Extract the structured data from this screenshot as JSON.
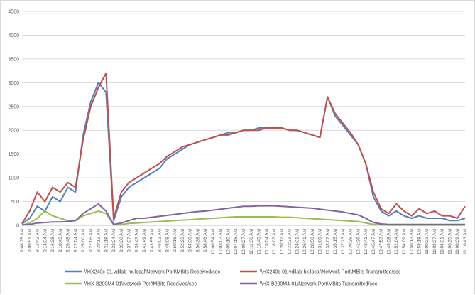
{
  "chart_data": {
    "type": "line",
    "title": "",
    "xlabel": "",
    "ylabel": "",
    "ylim": [
      0,
      4500
    ],
    "yticks": [
      0,
      500,
      1000,
      1500,
      2000,
      2500,
      3000,
      3500,
      4000,
      4500
    ],
    "grid": "horizontal",
    "legend_position": "bottom",
    "x": [
      "9:08:25 AM",
      "9:09:51 AM",
      "9:12:42 AM",
      "9:14:34 AM",
      "9:16:38 AM",
      "9:18:43 AM",
      "9:20:48 AM",
      "9:22:54 AM",
      "9:25:00 AM",
      "9:27:06 AM",
      "9:29:12 AM",
      "9:31:18 AM",
      "9:33:24 AM",
      "9:35:30 AM",
      "9:37:37 AM",
      "9:39:43 AM",
      "9:41:49 AM",
      "9:43:55 AM",
      "9:46:02 AM",
      "9:48:08 AM",
      "9:50:16 AM",
      "9:52:23 AM",
      "9:54:30 AM",
      "9:56:38 AM",
      "9:58:46 AM",
      "10:00:54 AM",
      "10:03:02 AM",
      "10:05:10 AM",
      "10:07:18 AM",
      "10:09:27 AM",
      "10:11:36 AM",
      "10:13:45 AM",
      "10:15:54 AM",
      "10:18:03 AM",
      "10:20:12 AM",
      "10:22:21 AM",
      "10:24:31 AM",
      "10:26:41 AM",
      "10:28:50 AM",
      "10:31:00 AM",
      "10:33:07 AM",
      "10:35:15 AM",
      "10:37:23 AM",
      "10:39:29 AM",
      "10:41:36 AM",
      "10:43:41 AM",
      "10:45:47 AM",
      "10:47:53 AM",
      "10:49:58 AM",
      "10:52:04 AM",
      "10:54:09 AM",
      "10:56:13 AM",
      "10:58:18 AM",
      "11:00:23 AM",
      "11:02:27 AM",
      "11:04:31 AM",
      "11:06:35 AM",
      "11:08:39 AM",
      "11:10:43 AM"
    ],
    "series": [
      {
        "name": "\\\\HX240c-01.vdilab-hx.local\\Network Port\\MBits Received/sec",
        "color": "#4f81bd",
        "values": [
          30,
          150,
          400,
          300,
          600,
          500,
          800,
          700,
          1900,
          2600,
          3000,
          2800,
          100,
          600,
          800,
          900,
          1000,
          1100,
          1200,
          1400,
          1500,
          1600,
          1700,
          1750,
          1800,
          1850,
          1900,
          1950,
          1950,
          2000,
          2000,
          2050,
          2050,
          2050,
          2050,
          2000,
          2000,
          1950,
          1900,
          1850,
          2700,
          2300,
          2100,
          1900,
          1700,
          1300,
          600,
          300,
          200,
          300,
          200,
          150,
          200,
          150,
          150,
          150,
          100,
          100,
          150
        ]
      },
      {
        "name": "\\\\HX240c-01.vdilab-hx.local\\Network Port\\MBits Transmitted/sec",
        "color": "#c0504d",
        "values": [
          40,
          300,
          700,
          500,
          800,
          700,
          900,
          800,
          1800,
          2500,
          2900,
          3200,
          150,
          700,
          900,
          1000,
          1100,
          1200,
          1300,
          1450,
          1550,
          1650,
          1700,
          1750,
          1800,
          1850,
          1900,
          1900,
          1950,
          2000,
          2000,
          2000,
          2050,
          2050,
          2050,
          2000,
          2000,
          1950,
          1900,
          1850,
          2700,
          2350,
          2150,
          1950,
          1700,
          1300,
          700,
          350,
          250,
          450,
          300,
          200,
          350,
          250,
          300,
          200,
          200,
          150,
          400
        ]
      },
      {
        "name": "\\\\HX-B200M4-01\\Network Port\\MBits Received/sec",
        "color": "#9bbb59",
        "values": [
          5,
          50,
          150,
          300,
          200,
          150,
          100,
          100,
          200,
          250,
          300,
          250,
          10,
          20,
          40,
          50,
          60,
          70,
          80,
          90,
          100,
          110,
          120,
          130,
          140,
          150,
          160,
          170,
          180,
          180,
          180,
          180,
          180,
          180,
          170,
          170,
          160,
          150,
          140,
          130,
          120,
          110,
          100,
          90,
          80,
          50,
          20,
          10,
          5,
          5,
          5,
          5,
          5,
          5,
          5,
          5,
          5,
          5,
          5
        ]
      },
      {
        "name": "\\\\HX-B200M4-01\\Network Port\\MBits Transmitted/sec",
        "color": "#8064a2",
        "values": [
          10,
          20,
          50,
          60,
          70,
          70,
          80,
          100,
          250,
          350,
          450,
          300,
          20,
          50,
          100,
          150,
          150,
          170,
          190,
          210,
          230,
          250,
          270,
          290,
          300,
          320,
          340,
          360,
          380,
          400,
          400,
          410,
          410,
          410,
          400,
          390,
          380,
          370,
          360,
          340,
          320,
          300,
          280,
          250,
          220,
          150,
          60,
          30,
          20,
          20,
          20,
          20,
          20,
          20,
          20,
          20,
          20,
          20,
          20
        ]
      }
    ]
  }
}
